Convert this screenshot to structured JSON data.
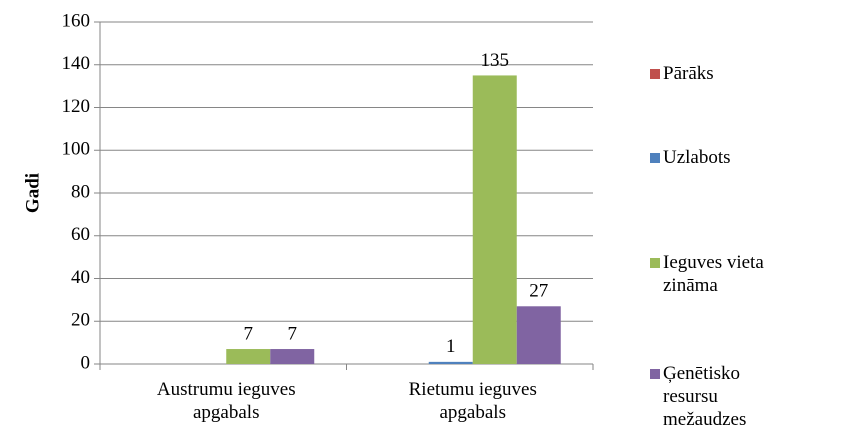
{
  "chart_data": {
    "type": "bar",
    "y_label": "Gadi",
    "categories": [
      "Austrumu ieguves apgabals",
      "Rietumu ieguves apgabals"
    ],
    "series": [
      {
        "name": "Pārāks",
        "color": "#c0504d",
        "values": [
          0,
          0
        ],
        "value_labels": [
          null,
          null
        ]
      },
      {
        "name": "Uzlabots",
        "color": "#4f81bd",
        "values": [
          0,
          1
        ],
        "value_labels": [
          null,
          "1"
        ]
      },
      {
        "name": "Ieguves vieta zināma",
        "color": "#9bbb59",
        "values": [
          7,
          135
        ],
        "value_labels": [
          "7",
          "135"
        ]
      },
      {
        "name": "Ģenētisko resursu mežaudzes",
        "color": "#8064a2",
        "values": [
          7,
          27
        ],
        "value_labels": [
          "7",
          "27"
        ]
      }
    ],
    "ylim": [
      0,
      160
    ],
    "yticks": [
      0,
      20,
      40,
      60,
      80,
      100,
      120,
      140,
      160
    ],
    "grid": true,
    "legend": "right"
  }
}
